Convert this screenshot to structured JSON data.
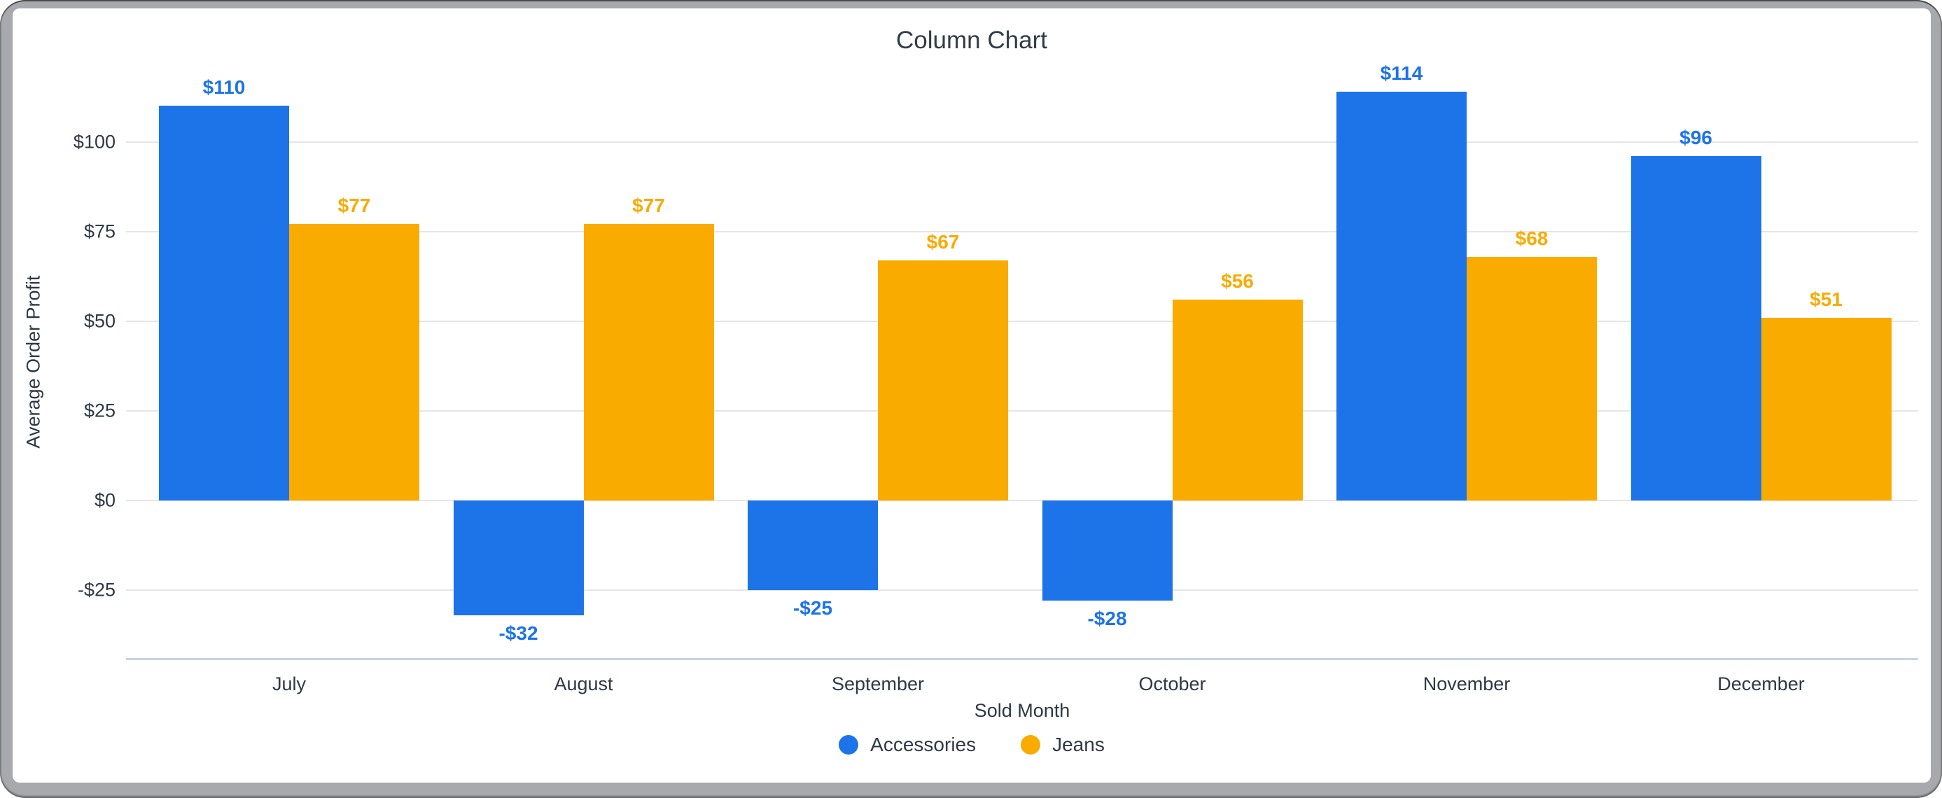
{
  "chart_data": {
    "type": "bar",
    "title": "Column Chart",
    "xlabel": "Sold Month",
    "ylabel": "Average Order Profit",
    "categories": [
      "July",
      "August",
      "September",
      "October",
      "November",
      "December"
    ],
    "series": [
      {
        "name": "Accessories",
        "color": "#1d73e8",
        "values": [
          110,
          -32,
          -25,
          -28,
          114,
          96
        ],
        "labels": [
          "$110",
          "-$32",
          "-$25",
          "-$28",
          "$114",
          "$96"
        ]
      },
      {
        "name": "Jeans",
        "color": "#f9ab00",
        "values": [
          77,
          77,
          67,
          56,
          68,
          51
        ],
        "labels": [
          "$77",
          "$77",
          "$67",
          "$56",
          "$68",
          "$51"
        ]
      }
    ],
    "y_ticks": [
      {
        "label": "$100",
        "value": 100
      },
      {
        "label": "$75",
        "value": 75
      },
      {
        "label": "$50",
        "value": 50
      },
      {
        "label": "$25",
        "value": 25
      },
      {
        "label": "$0",
        "value": 0
      },
      {
        "label": "-$25",
        "value": -25
      }
    ],
    "ylim": [
      -44,
      122
    ],
    "grid": true,
    "legend_position": "bottom",
    "baseline_color": "#c9d3ea",
    "gridline_color": "#e6e6e6"
  }
}
